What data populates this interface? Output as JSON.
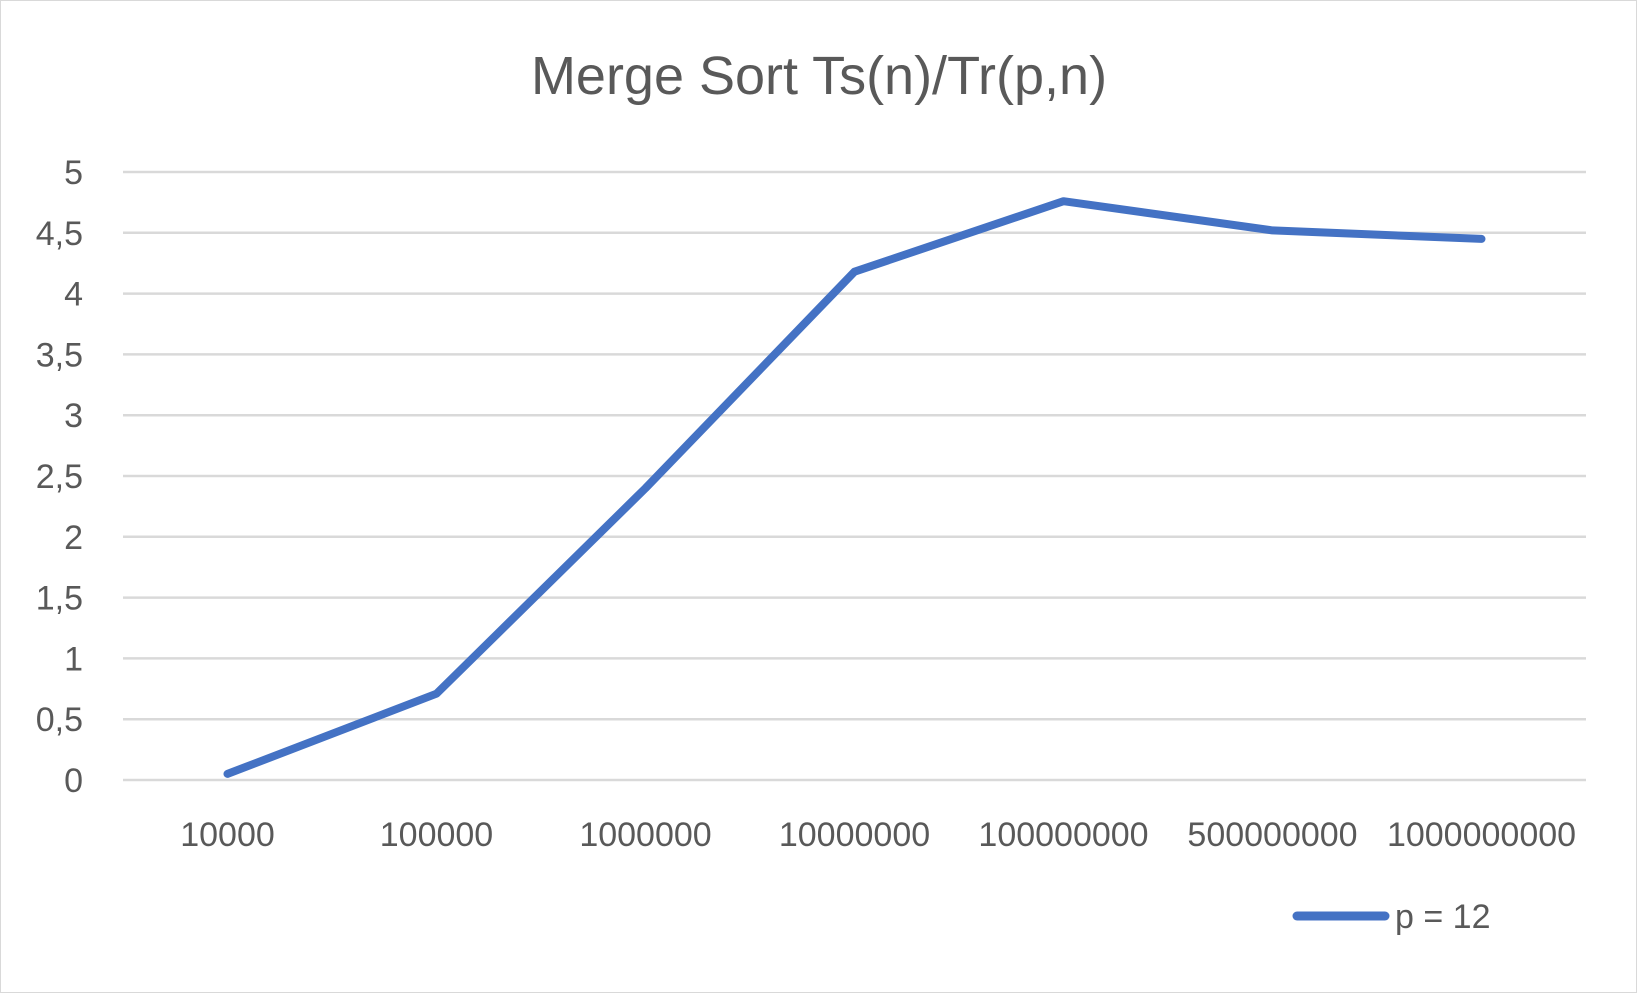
{
  "chart_data": {
    "type": "line",
    "title": "Merge Sort Ts(n)/Tr(p,n)",
    "categories": [
      "10000",
      "100000",
      "1000000",
      "10000000",
      "100000000",
      "500000000",
      "1000000000"
    ],
    "series": [
      {
        "name": "p = 12",
        "values": [
          0.05,
          0.71,
          2.4,
          4.18,
          4.76,
          4.52,
          4.45
        ],
        "color": "#4472C4"
      }
    ],
    "ylim": [
      0,
      5
    ],
    "yticks": [
      "0",
      "0,5",
      "1",
      "1,5",
      "2",
      "2,5",
      "3",
      "3,5",
      "4",
      "4,5",
      "5"
    ],
    "xlabel": "",
    "ylabel": "",
    "grid": true,
    "legend_position": "bottom-right",
    "colors": {
      "gridline": "#d9d9d9",
      "text": "#595959",
      "border": "#d9d9d9"
    }
  }
}
